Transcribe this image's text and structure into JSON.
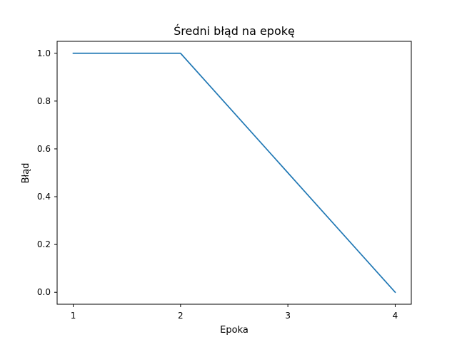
{
  "chart_data": {
    "type": "line",
    "title": "Średni błąd na epokę",
    "xlabel": "Epoka",
    "ylabel": "Błąd",
    "x": [
      1,
      2,
      3,
      4
    ],
    "series": [
      {
        "values": [
          1.0,
          1.0,
          0.5,
          0.0
        ],
        "color": "#1f77b4"
      }
    ],
    "xticks": [
      1,
      2,
      3,
      4
    ],
    "xtick_labels": [
      "1",
      "2",
      "3",
      "4"
    ],
    "yticks": [
      0.0,
      0.2,
      0.4,
      0.6,
      0.8,
      1.0
    ],
    "ytick_labels": [
      "0.0",
      "0.2",
      "0.4",
      "0.6",
      "0.8",
      "1.0"
    ],
    "xlim": [
      0.85,
      4.15
    ],
    "ylim": [
      -0.05,
      1.05
    ],
    "grid": false,
    "legend": false
  }
}
